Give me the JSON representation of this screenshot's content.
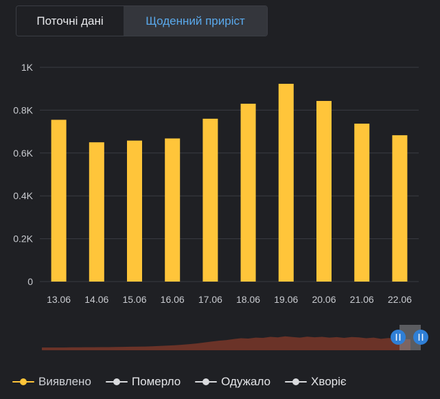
{
  "tabs": [
    {
      "label": "Поточні дані",
      "active": false
    },
    {
      "label": "Щоденний приріст",
      "active": true
    }
  ],
  "colors": {
    "background": "#1f2024",
    "bar": "#ffc53a",
    "grid": "#3a3c42",
    "tick_text": "#c9cbd0",
    "active_tab_text": "#5aa9ec",
    "navigator_area": "#6b3328",
    "handle": "#2f7fd6"
  },
  "chart_data": {
    "type": "bar",
    "categories": [
      "13.06",
      "14.06",
      "15.06",
      "16.06",
      "17.06",
      "18.06",
      "19.06",
      "20.06",
      "21.06",
      "22.06"
    ],
    "series": [
      {
        "name": "Виявлено",
        "values": [
          755,
          650,
          658,
          668,
          760,
          830,
          923,
          843,
          737,
          683
        ]
      }
    ],
    "ylim": [
      0,
      1000
    ],
    "yticks": [
      0,
      200,
      400,
      600,
      800,
      1000
    ],
    "ytick_labels": [
      "0",
      "0.2K",
      "0.4K",
      "0.6K",
      "0.8K",
      "1K"
    ],
    "grid": true,
    "legend_position": "bottom-left"
  },
  "legend": [
    {
      "label": "Виявлено",
      "color": "#ffc53a",
      "active": true
    },
    {
      "label": "Померло",
      "color": "#d9dadd",
      "active": false
    },
    {
      "label": "Одужало",
      "color": "#d9dadd",
      "active": false
    },
    {
      "label": "Хворіє",
      "color": "#d9dadd",
      "active": false
    }
  ],
  "navigator": {
    "history_profile": [
      0.0,
      0.0,
      0.0,
      0.0,
      0.01,
      0.01,
      0.02,
      0.02,
      0.03,
      0.03,
      0.04,
      0.05,
      0.06,
      0.07,
      0.08,
      0.1,
      0.12,
      0.15,
      0.18,
      0.22,
      0.27,
      0.33,
      0.4,
      0.48,
      0.55,
      0.6,
      0.68,
      0.75,
      0.72,
      0.8,
      0.78,
      0.86,
      0.82,
      0.9,
      0.85,
      0.8,
      0.88,
      0.83,
      0.86,
      0.8,
      0.84,
      0.78,
      0.85,
      0.82,
      0.75,
      0.8,
      0.7,
      0.76,
      0.72,
      0.68,
      0.66
    ]
  }
}
